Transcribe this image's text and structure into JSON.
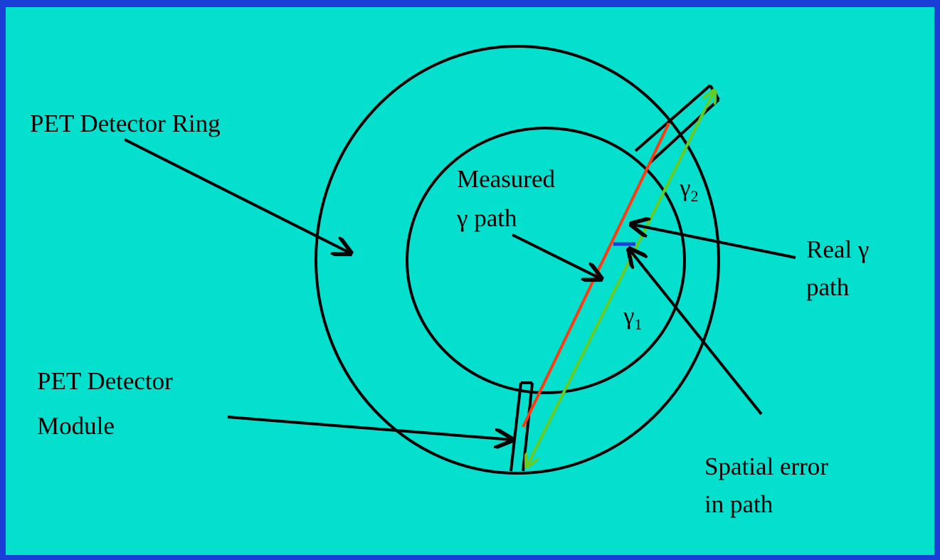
{
  "labels": {
    "ring": "PET Detector Ring",
    "measured": [
      "Measured",
      "γ path"
    ],
    "real": [
      "Real γ",
      "path"
    ],
    "module": [
      "PET Detector",
      "Module"
    ],
    "error": [
      "Spatial error",
      "in path"
    ],
    "gamma2": {
      "symbol": "γ",
      "subscript": "2"
    },
    "gamma1": {
      "symbol": "γ",
      "subscript": "1"
    }
  }
}
